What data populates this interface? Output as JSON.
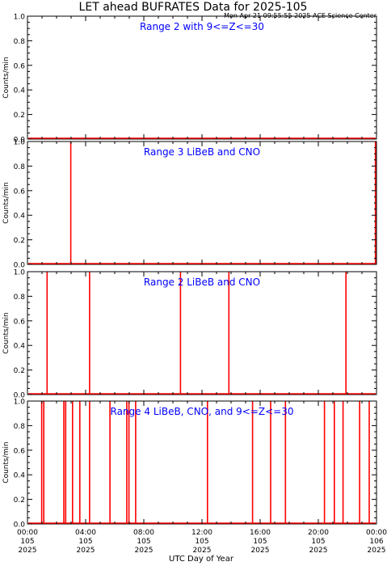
{
  "title": "LET ahead BUFRATES Data for 2025-105",
  "timestamp": "Mon Apr 21 09:55:55 2025 ACE Science Center",
  "xlabel": "UTC Day of Year",
  "colors": {
    "axes": "#000000",
    "data": "#ff0000",
    "panel_title": "#0000ff"
  },
  "chart_data": [
    {
      "type": "bar",
      "title": "Range 2 with 9<=Z<=30",
      "ylabel": "Counts/min",
      "ylim": [
        0,
        1.0
      ],
      "xlim_hours": [
        0,
        24
      ],
      "spike_hours": []
    },
    {
      "type": "bar",
      "title": "Range 3 LiBeB and CNO",
      "ylabel": "Counts/min",
      "ylim": [
        0,
        1.0
      ],
      "xlim_hours": [
        0,
        24
      ],
      "spike_hours": [
        2.98,
        23.93
      ]
    },
    {
      "type": "bar",
      "title": "Range 2 LiBeB and CNO",
      "ylabel": "Counts/min",
      "ylim": [
        0,
        1.0
      ],
      "xlim_hours": [
        0,
        24
      ],
      "spike_hours": [
        1.35,
        4.27,
        10.52,
        13.85,
        21.9
      ]
    },
    {
      "type": "bar",
      "title": "Range 4 LiBeB, CNO, and 9<=Z<=30",
      "ylabel": "Counts/min",
      "ylim": [
        0,
        1.0
      ],
      "xlim_hours": [
        0,
        24
      ],
      "spike_hours": [
        0.98,
        1.12,
        2.5,
        2.63,
        3.1,
        3.6,
        4.27,
        5.67,
        6.83,
        6.98,
        7.44,
        12.38,
        15.48,
        16.72,
        17.74,
        20.42,
        21.1,
        21.7,
        22.84,
        23.5
      ]
    }
  ],
  "yticks": [
    "0.0",
    "0.2",
    "0.4",
    "0.6",
    "0.8",
    "1.0"
  ],
  "xticks": [
    {
      "hour": 0,
      "time": "00:00",
      "doy": "105",
      "year": "2025"
    },
    {
      "hour": 4,
      "time": "04:00",
      "doy": "105",
      "year": "2025"
    },
    {
      "hour": 8,
      "time": "08:00",
      "doy": "105",
      "year": "2025"
    },
    {
      "hour": 12,
      "time": "12:00",
      "doy": "105",
      "year": "2025"
    },
    {
      "hour": 16,
      "time": "16:00",
      "doy": "105",
      "year": "2025"
    },
    {
      "hour": 20,
      "time": "20:00",
      "doy": "105",
      "year": "2025"
    },
    {
      "hour": 24,
      "time": "00:00",
      "doy": "106",
      "year": "2025"
    }
  ]
}
